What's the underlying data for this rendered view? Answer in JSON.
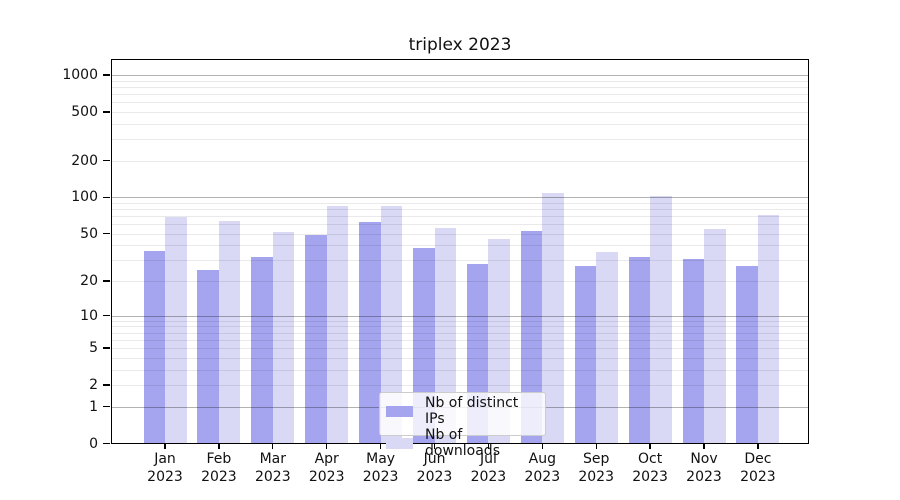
{
  "title": "triplex 2023",
  "chart_data": {
    "type": "bar",
    "title": "triplex 2023",
    "categories": [
      "Jan 2023",
      "Feb 2023",
      "Mar 2023",
      "Apr 2023",
      "May 2023",
      "Jun 2023",
      "Jul 2023",
      "Aug 2023",
      "Sep 2023",
      "Oct 2023",
      "Nov 2023",
      "Dec 2023"
    ],
    "series": [
      {
        "name": "Nb of distinct IPs",
        "color": "#a5a5ef",
        "values": [
          36,
          25,
          32,
          49,
          63,
          38,
          28,
          53,
          27,
          32,
          31,
          27
        ]
      },
      {
        "name": "Nb of downloads",
        "color": "#d9d9f6",
        "values": [
          69,
          64,
          52,
          85,
          84,
          56,
          45,
          108,
          35,
          103,
          55,
          72
        ]
      }
    ],
    "xlabel": "",
    "ylabel": "",
    "yscale": "log1p",
    "y_ticks": [
      0,
      1,
      2,
      5,
      10,
      20,
      50,
      100,
      200,
      500,
      1000
    ],
    "ylim": [
      0,
      1336
    ],
    "grid": true,
    "legend_position": "lower center"
  },
  "style": {
    "major_grid_color": "#b0b0b0",
    "minor_grid_color": "#e8e8e8",
    "axis_color": "#000000",
    "legend_border_color": "#cccccc",
    "background": "#ffffff"
  }
}
